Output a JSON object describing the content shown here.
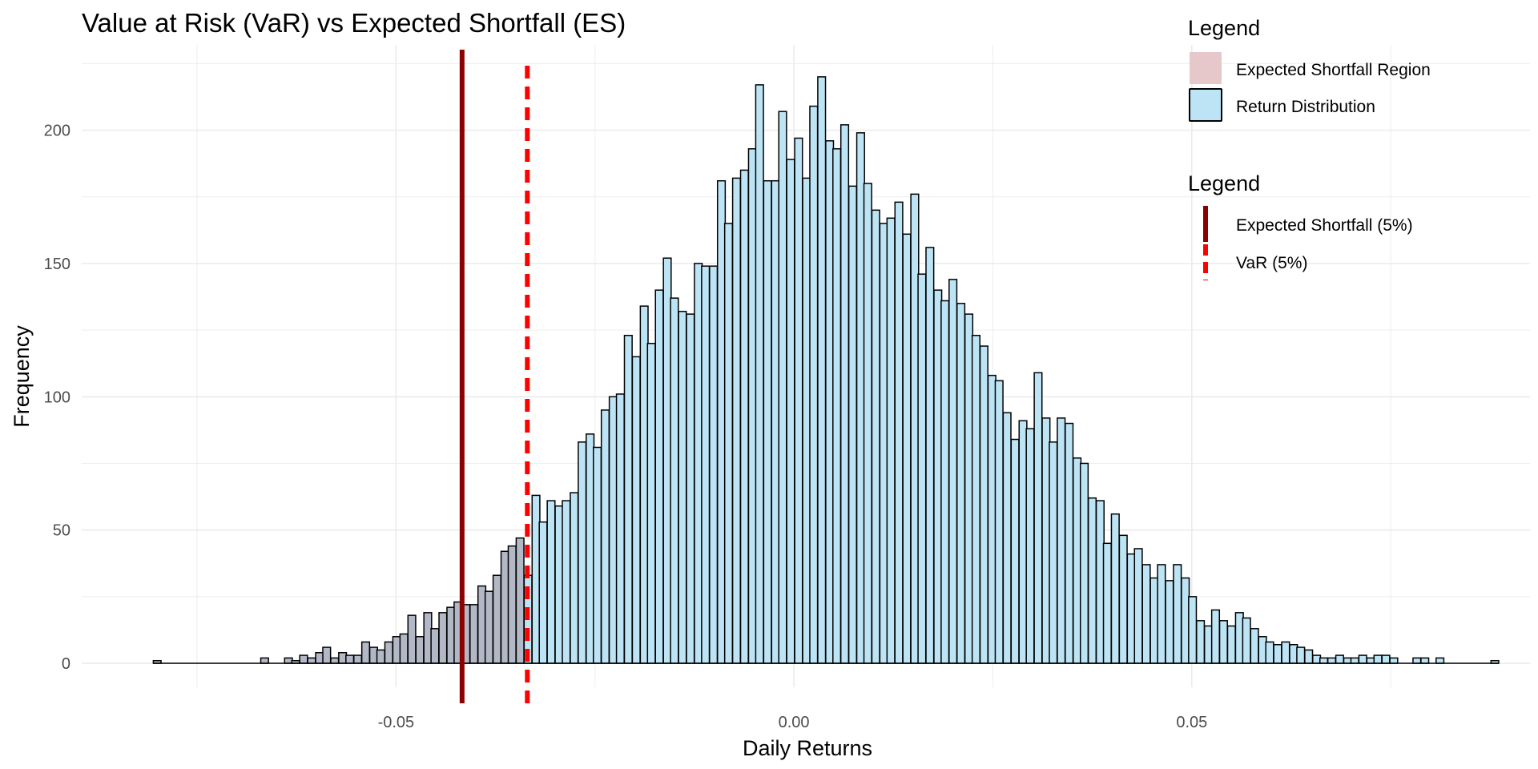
{
  "chart_data": {
    "type": "bar",
    "title": "Value at Risk (VaR) vs Expected Shortfall (ES)",
    "xlabel": "Daily Returns",
    "ylabel": "Frequency",
    "xlim": [
      -0.0895,
      0.0925
    ],
    "ylim": [
      -9,
      232
    ],
    "x_ticks": [
      -0.05,
      0.0,
      0.05
    ],
    "x_tick_labels": [
      "-0.05",
      "0.00",
      "0.05"
    ],
    "y_ticks": [
      0,
      50,
      100,
      150,
      200
    ],
    "y_tick_labels": [
      "0",
      "50",
      "100",
      "150",
      "200"
    ],
    "grid": true,
    "bin_width": 0.00097,
    "bin_start": -0.0805,
    "bins": [
      {
        "x": -0.0805,
        "y": 1
      },
      {
        "x": -0.067,
        "y": 2
      },
      {
        "x": -0.064,
        "y": 2
      },
      {
        "x": -0.0631,
        "y": 1
      },
      {
        "x": -0.0621,
        "y": 3
      },
      {
        "x": -0.0611,
        "y": 2
      },
      {
        "x": -0.0601,
        "y": 4
      },
      {
        "x": -0.0592,
        "y": 6
      },
      {
        "x": -0.0582,
        "y": 2
      },
      {
        "x": -0.0572,
        "y": 4
      },
      {
        "x": -0.0563,
        "y": 3
      },
      {
        "x": -0.0553,
        "y": 3
      },
      {
        "x": -0.0543,
        "y": 8
      },
      {
        "x": -0.0533,
        "y": 6
      },
      {
        "x": -0.0524,
        "y": 5
      },
      {
        "x": -0.0514,
        "y": 8
      },
      {
        "x": -0.0504,
        "y": 10
      },
      {
        "x": -0.0495,
        "y": 11
      },
      {
        "x": -0.0485,
        "y": 18
      },
      {
        "x": -0.0475,
        "y": 10
      },
      {
        "x": -0.0465,
        "y": 19
      },
      {
        "x": -0.0456,
        "y": 13
      },
      {
        "x": -0.0446,
        "y": 19
      },
      {
        "x": -0.0436,
        "y": 21
      },
      {
        "x": -0.0427,
        "y": 23
      },
      {
        "x": -0.0417,
        "y": 22
      },
      {
        "x": -0.0407,
        "y": 22
      },
      {
        "x": -0.0397,
        "y": 29
      },
      {
        "x": -0.0388,
        "y": 27
      },
      {
        "x": -0.0378,
        "y": 33
      },
      {
        "x": -0.0368,
        "y": 42
      },
      {
        "x": -0.0359,
        "y": 44
      },
      {
        "x": -0.0349,
        "y": 47
      },
      {
        "x": -0.0339,
        "y": 33
      },
      {
        "x": -0.0329,
        "y": 63
      },
      {
        "x": -0.032,
        "y": 53
      },
      {
        "x": -0.031,
        "y": 61
      },
      {
        "x": -0.03,
        "y": 59
      },
      {
        "x": -0.0291,
        "y": 61
      },
      {
        "x": -0.0281,
        "y": 64
      },
      {
        "x": -0.0271,
        "y": 83
      },
      {
        "x": -0.0261,
        "y": 86
      },
      {
        "x": -0.0252,
        "y": 81
      },
      {
        "x": -0.0242,
        "y": 95
      },
      {
        "x": -0.0232,
        "y": 100
      },
      {
        "x": -0.0223,
        "y": 101
      },
      {
        "x": -0.0213,
        "y": 123
      },
      {
        "x": -0.0203,
        "y": 115
      },
      {
        "x": -0.0193,
        "y": 134
      },
      {
        "x": -0.0184,
        "y": 120
      },
      {
        "x": -0.0174,
        "y": 140
      },
      {
        "x": -0.0164,
        "y": 152
      },
      {
        "x": -0.0155,
        "y": 137
      },
      {
        "x": -0.0145,
        "y": 132
      },
      {
        "x": -0.0135,
        "y": 131
      },
      {
        "x": -0.0125,
        "y": 150
      },
      {
        "x": -0.0116,
        "y": 149
      },
      {
        "x": -0.0106,
        "y": 149
      },
      {
        "x": -0.0096,
        "y": 181
      },
      {
        "x": -0.0087,
        "y": 165
      },
      {
        "x": -0.0077,
        "y": 182
      },
      {
        "x": -0.0067,
        "y": 185
      },
      {
        "x": -0.0057,
        "y": 193
      },
      {
        "x": -0.0048,
        "y": 217
      },
      {
        "x": -0.0038,
        "y": 181
      },
      {
        "x": -0.0028,
        "y": 181
      },
      {
        "x": -0.0019,
        "y": 207
      },
      {
        "x": -0.0009,
        "y": 189
      },
      {
        "x": 0.0001,
        "y": 197
      },
      {
        "x": 0.0011,
        "y": 182
      },
      {
        "x": 0.002,
        "y": 209
      },
      {
        "x": 0.003,
        "y": 220
      },
      {
        "x": 0.004,
        "y": 196
      },
      {
        "x": 0.0049,
        "y": 193
      },
      {
        "x": 0.0059,
        "y": 202
      },
      {
        "x": 0.0069,
        "y": 179
      },
      {
        "x": 0.0079,
        "y": 199
      },
      {
        "x": 0.0088,
        "y": 180
      },
      {
        "x": 0.0098,
        "y": 170
      },
      {
        "x": 0.0108,
        "y": 165
      },
      {
        "x": 0.0117,
        "y": 167
      },
      {
        "x": 0.0127,
        "y": 173
      },
      {
        "x": 0.0137,
        "y": 161
      },
      {
        "x": 0.0147,
        "y": 176
      },
      {
        "x": 0.0156,
        "y": 146
      },
      {
        "x": 0.0166,
        "y": 156
      },
      {
        "x": 0.0176,
        "y": 140
      },
      {
        "x": 0.0185,
        "y": 136
      },
      {
        "x": 0.0195,
        "y": 144
      },
      {
        "x": 0.0205,
        "y": 135
      },
      {
        "x": 0.0215,
        "y": 131
      },
      {
        "x": 0.0224,
        "y": 123
      },
      {
        "x": 0.0234,
        "y": 119
      },
      {
        "x": 0.0244,
        "y": 108
      },
      {
        "x": 0.0253,
        "y": 106
      },
      {
        "x": 0.0263,
        "y": 94
      },
      {
        "x": 0.0273,
        "y": 84
      },
      {
        "x": 0.0283,
        "y": 91
      },
      {
        "x": 0.0292,
        "y": 88
      },
      {
        "x": 0.0302,
        "y": 109
      },
      {
        "x": 0.0312,
        "y": 92
      },
      {
        "x": 0.0321,
        "y": 83
      },
      {
        "x": 0.0331,
        "y": 92
      },
      {
        "x": 0.0341,
        "y": 90
      },
      {
        "x": 0.0351,
        "y": 77
      },
      {
        "x": 0.036,
        "y": 75
      },
      {
        "x": 0.037,
        "y": 62
      },
      {
        "x": 0.038,
        "y": 61
      },
      {
        "x": 0.0389,
        "y": 45
      },
      {
        "x": 0.0399,
        "y": 56
      },
      {
        "x": 0.0409,
        "y": 48
      },
      {
        "x": 0.0419,
        "y": 41
      },
      {
        "x": 0.0428,
        "y": 43
      },
      {
        "x": 0.0438,
        "y": 37
      },
      {
        "x": 0.0448,
        "y": 32
      },
      {
        "x": 0.0457,
        "y": 37
      },
      {
        "x": 0.0467,
        "y": 31
      },
      {
        "x": 0.0477,
        "y": 37
      },
      {
        "x": 0.0487,
        "y": 32
      },
      {
        "x": 0.0496,
        "y": 25
      },
      {
        "x": 0.0506,
        "y": 16
      },
      {
        "x": 0.0516,
        "y": 14
      },
      {
        "x": 0.0525,
        "y": 20
      },
      {
        "x": 0.0535,
        "y": 16
      },
      {
        "x": 0.0545,
        "y": 14
      },
      {
        "x": 0.0555,
        "y": 19
      },
      {
        "x": 0.0564,
        "y": 17
      },
      {
        "x": 0.0574,
        "y": 13
      },
      {
        "x": 0.0584,
        "y": 10
      },
      {
        "x": 0.0593,
        "y": 8
      },
      {
        "x": 0.0603,
        "y": 7
      },
      {
        "x": 0.0613,
        "y": 8
      },
      {
        "x": 0.0623,
        "y": 7
      },
      {
        "x": 0.0632,
        "y": 6
      },
      {
        "x": 0.0642,
        "y": 5
      },
      {
        "x": 0.0652,
        "y": 3
      },
      {
        "x": 0.0661,
        "y": 2
      },
      {
        "x": 0.0671,
        "y": 2
      },
      {
        "x": 0.0681,
        "y": 3
      },
      {
        "x": 0.0691,
        "y": 2
      },
      {
        "x": 0.07,
        "y": 2
      },
      {
        "x": 0.071,
        "y": 3
      },
      {
        "x": 0.072,
        "y": 2
      },
      {
        "x": 0.0729,
        "y": 3
      },
      {
        "x": 0.0739,
        "y": 3
      },
      {
        "x": 0.0749,
        "y": 2
      },
      {
        "x": 0.0778,
        "y": 2
      },
      {
        "x": 0.0788,
        "y": 2
      },
      {
        "x": 0.0807,
        "y": 2
      },
      {
        "x": 0.0876,
        "y": 1
      }
    ],
    "var_5": -0.0335,
    "es_5": -0.0417,
    "colors": {
      "return_fill": "#BDE4F4",
      "es_region_fill": "#B3B8C6",
      "es_legend_fill": "#E6C8CB",
      "bar_stroke": "#000000",
      "var_line": "#FF0000",
      "es_line": "#8B0000",
      "grid": "#EBEBEB"
    },
    "legends": [
      {
        "title": "Legend",
        "items": [
          {
            "label": "Expected Shortfall Region",
            "kind": "fill",
            "color": "#E6C8CB"
          },
          {
            "label": "Return Distribution",
            "kind": "fill",
            "color": "#BDE4F4"
          }
        ]
      },
      {
        "title": "Legend",
        "items": [
          {
            "label": "Expected Shortfall (5%)",
            "kind": "solid-line",
            "color": "#8B0000"
          },
          {
            "label": "VaR (5%)",
            "kind": "dashed-line",
            "color": "#FF0000"
          }
        ]
      }
    ],
    "legend_placement": "top-right"
  }
}
